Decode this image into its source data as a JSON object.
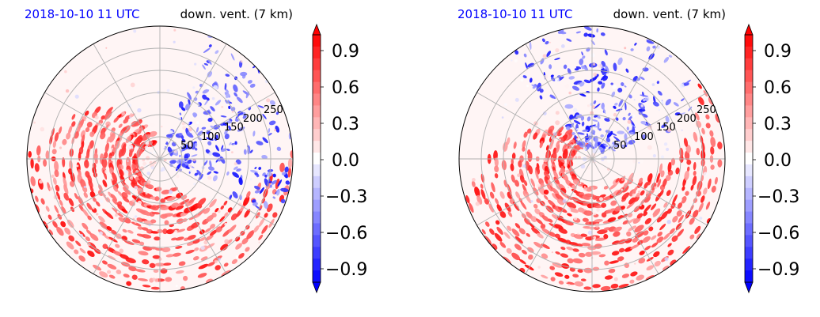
{
  "chart_data": [
    {
      "type": "heatmap",
      "projection": "polar",
      "title_left": "2018-10-10 11 UTC",
      "title_right": "down. vent. (7 km)",
      "title_left_color": "#0000ff",
      "radial_tick_labels": [
        "50",
        "100",
        "150",
        "200",
        "250"
      ],
      "radial_ticks": [
        50,
        100,
        150,
        200,
        250
      ],
      "rmax": 300,
      "angular_gridlines_deg": [
        0,
        30,
        60,
        90,
        120,
        150,
        180,
        210,
        240,
        270,
        300,
        330
      ],
      "grid": true,
      "colorbar": {
        "tick_labels": [
          "0.9",
          "0.6",
          "0.3",
          "0.0",
          "−0.3",
          "−0.6",
          "−0.9"
        ],
        "ticks": [
          0.9,
          0.6,
          0.3,
          0.0,
          -0.3,
          -0.6,
          -0.9
        ],
        "vmin": -1.0,
        "vmax": 1.0,
        "extend": "both",
        "cmap": "bwr"
      },
      "pattern": "left"
    },
    {
      "type": "heatmap",
      "projection": "polar",
      "title_left": "2018-10-10 11 UTC",
      "title_right": "down. vent. (7 km)",
      "title_left_color": "#0000ff",
      "radial_tick_labels": [
        "50",
        "100",
        "150",
        "200",
        "250"
      ],
      "radial_ticks": [
        50,
        100,
        150,
        200,
        250
      ],
      "rmax": 300,
      "angular_gridlines_deg": [
        0,
        30,
        60,
        90,
        120,
        150,
        180,
        210,
        240,
        270,
        300,
        330
      ],
      "grid": true,
      "colorbar": {
        "tick_labels": [
          "0.9",
          "0.6",
          "0.3",
          "0.0",
          "−0.3",
          "−0.6",
          "−0.9"
        ],
        "ticks": [
          0.9,
          0.6,
          0.3,
          0.0,
          -0.3,
          -0.6,
          -0.9
        ],
        "vmin": -1.0,
        "vmax": 1.0,
        "extend": "both",
        "cmap": "bwr"
      },
      "pattern": "right"
    }
  ],
  "colors": {
    "positive": "#ff0000",
    "negative": "#0000ff",
    "neutral": "#fff5f5",
    "grid": "#b0b0b0"
  }
}
